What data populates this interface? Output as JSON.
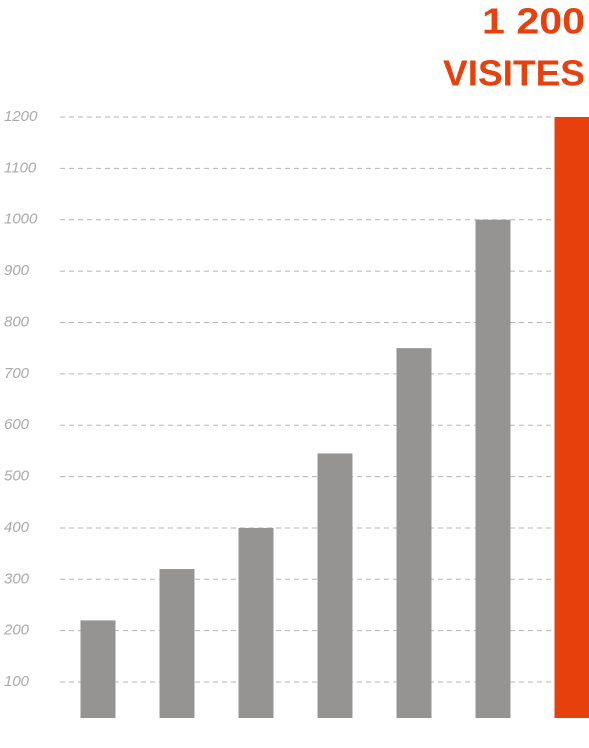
{
  "chart_data": {
    "type": "bar",
    "title": "1 200",
    "subtitle": "VISITES",
    "categories": [
      null,
      null,
      null,
      null,
      null,
      null,
      null
    ],
    "values": [
      220,
      320,
      400,
      545,
      750,
      1000,
      1200
    ],
    "colors": [
      "#959492",
      "#959492",
      "#959492",
      "#959492",
      "#959492",
      "#959492",
      "#e8400c"
    ],
    "ylim": [
      30,
      1200
    ],
    "yticks": [
      100,
      200,
      300,
      400,
      500,
      600,
      700,
      800,
      900,
      1000,
      1100,
      1200
    ],
    "grid": true
  }
}
